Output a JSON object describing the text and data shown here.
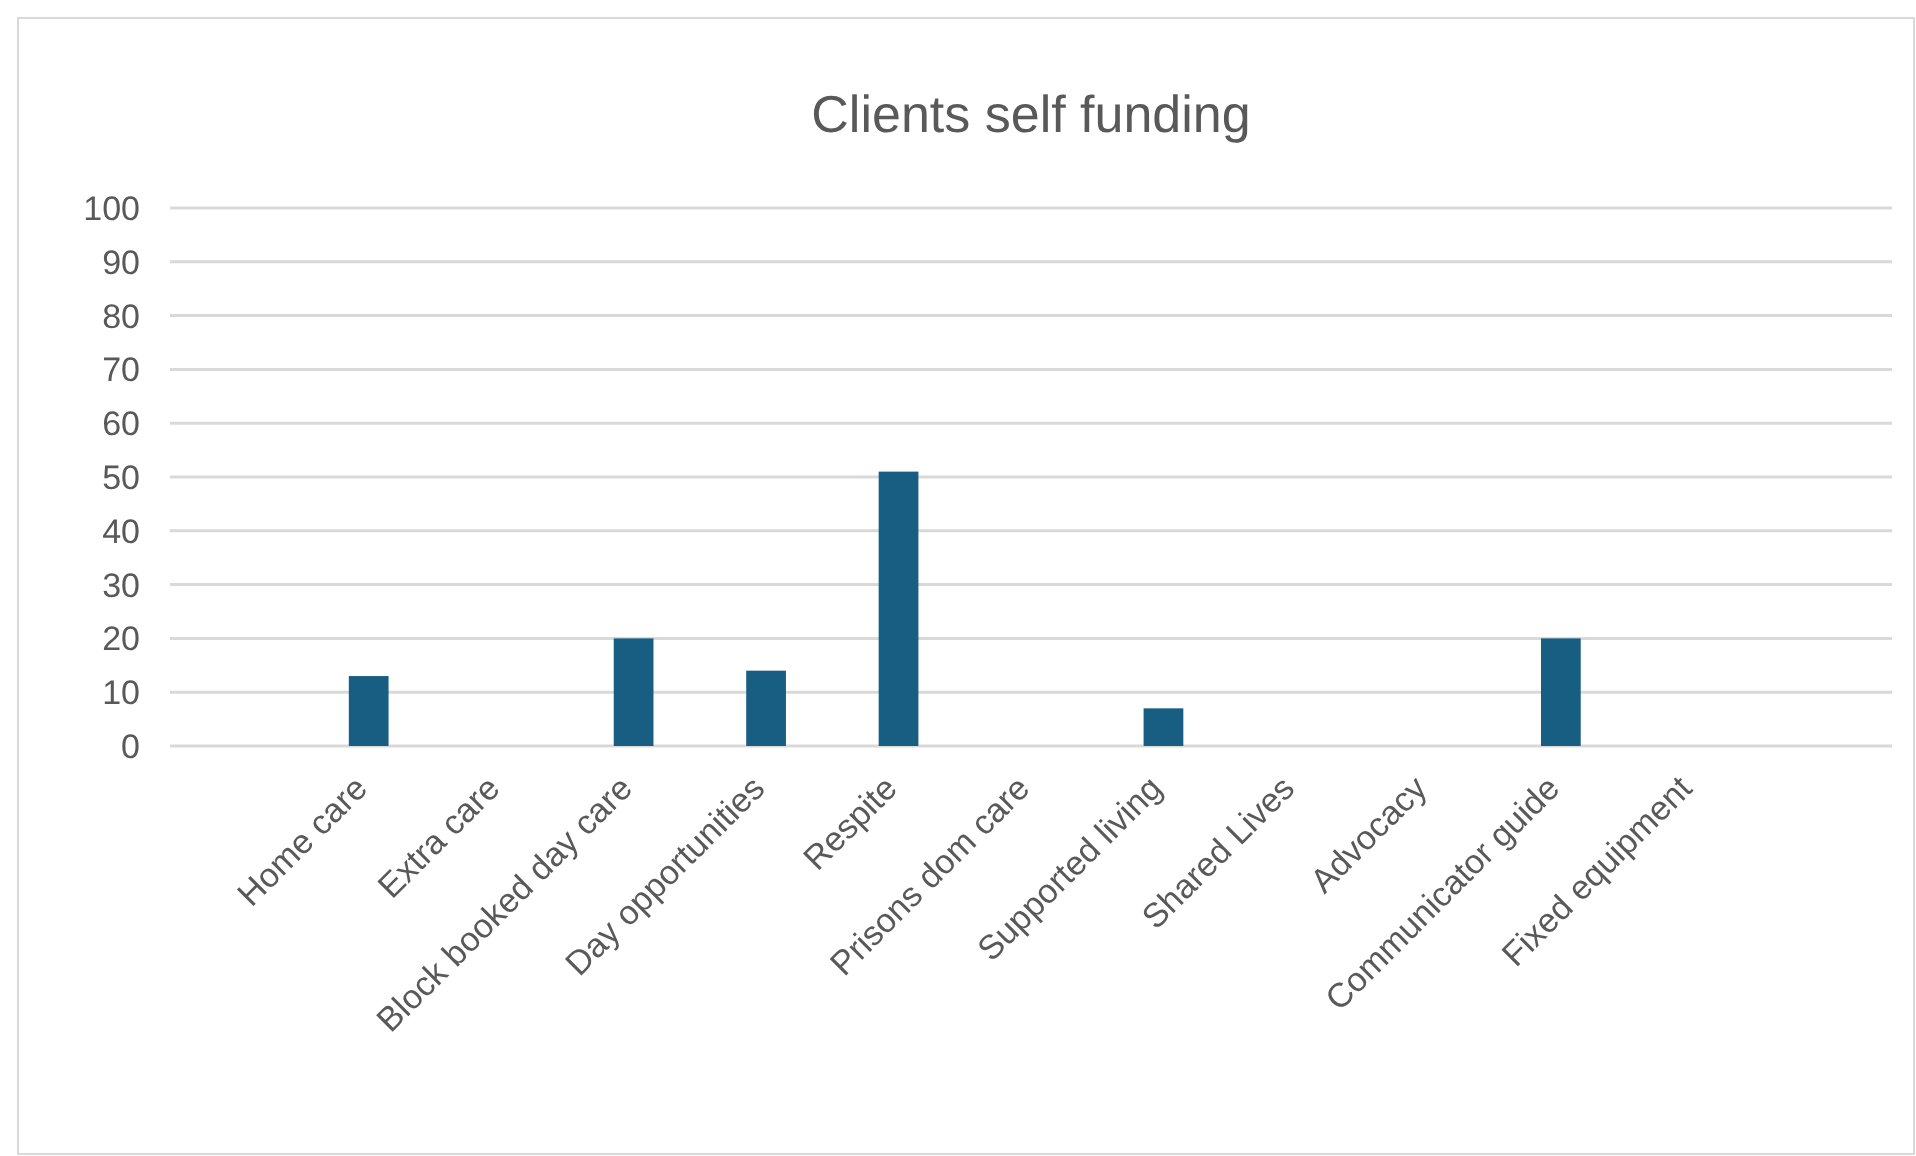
{
  "chart_data": {
    "type": "bar",
    "title": "Clients self funding",
    "categories": [
      null,
      "Home care",
      "Extra care",
      "Block booked day care",
      "Day opportunities",
      "Respite",
      "Prisons dom care",
      "Supported living",
      "Shared Lives",
      "Advocacy",
      "Communicator guide",
      "Fixed equipment",
      null
    ],
    "values": [
      null,
      13,
      null,
      20,
      14,
      51,
      null,
      7,
      null,
      null,
      20,
      null,
      null
    ],
    "color": "#175e82",
    "ylim": [
      0,
      100
    ],
    "yticks": [
      0,
      10,
      20,
      30,
      40,
      50,
      60,
      70,
      80,
      90,
      100
    ],
    "grid": "y"
  }
}
